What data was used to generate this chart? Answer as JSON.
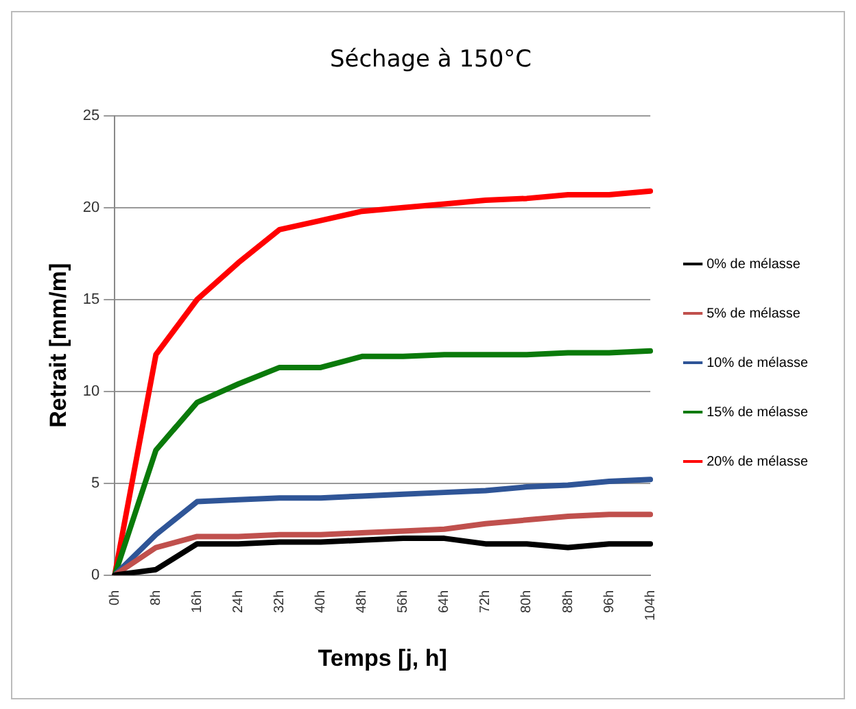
{
  "chart_data": {
    "type": "line",
    "title": "Séchage à 150°C",
    "xlabel": "Temps [j, h]",
    "ylabel": "Retrait [mm/m]",
    "categories": [
      "0h",
      "8h",
      "16h",
      "24h",
      "32h",
      "40h",
      "48h",
      "56h",
      "64h",
      "72h",
      "80h",
      "88h",
      "96h",
      "104h"
    ],
    "series": [
      {
        "name": "0% de mélasse",
        "color": "#000000",
        "values": [
          0,
          0.3,
          1.7,
          1.7,
          1.8,
          1.8,
          1.9,
          2.0,
          2.0,
          1.7,
          1.7,
          1.5,
          1.7,
          1.7
        ]
      },
      {
        "name": "5% de mélasse",
        "color": "#c0504d",
        "values": [
          0,
          1.5,
          2.1,
          2.1,
          2.2,
          2.2,
          2.3,
          2.4,
          2.5,
          2.8,
          3.0,
          3.2,
          3.3,
          3.3
        ]
      },
      {
        "name": "10% de mélasse",
        "color": "#2f5597",
        "values": [
          0,
          2.2,
          4.0,
          4.1,
          4.2,
          4.2,
          4.3,
          4.4,
          4.5,
          4.6,
          4.8,
          4.9,
          5.1,
          5.2
        ]
      },
      {
        "name": "15% de mélasse",
        "color": "#0a7a0a",
        "values": [
          0,
          6.8,
          9.4,
          10.4,
          11.3,
          11.3,
          11.9,
          11.9,
          12.0,
          12.0,
          12.0,
          12.1,
          12.1,
          12.2
        ]
      },
      {
        "name": "20% de mélasse",
        "color": "#ff0000",
        "values": [
          0,
          12,
          15,
          17,
          18.8,
          19.3,
          19.8,
          20.0,
          20.2,
          20.4,
          20.5,
          20.7,
          20.7,
          20.9
        ]
      }
    ],
    "ylim": [
      0,
      25
    ],
    "yticks": [
      0,
      5,
      10,
      15,
      20,
      25
    ],
    "grid": "y",
    "legend": "right",
    "marker": "none",
    "line_style": "solid"
  }
}
